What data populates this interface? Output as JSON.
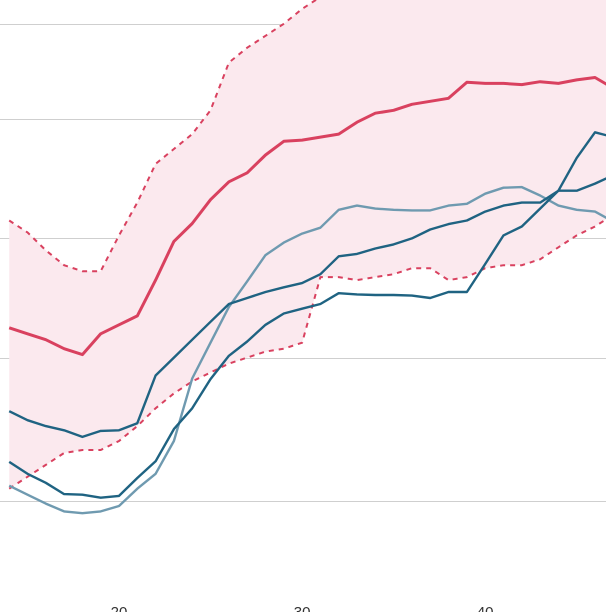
{
  "chart_data": {
    "type": "line",
    "title": "",
    "xlabel": "",
    "ylabel": "",
    "x": [
      14,
      15,
      16,
      17,
      18,
      19,
      20,
      21,
      22,
      23,
      24,
      25,
      26,
      27,
      28,
      29,
      30,
      31,
      32,
      33,
      34,
      35,
      36,
      37,
      38,
      39,
      40,
      41,
      42,
      43,
      44,
      45,
      46,
      47
    ],
    "xlim": [
      13.5,
      46.6
    ],
    "ylim": [
      0,
      1
    ],
    "x_ticks": [
      {
        "value": 20,
        "label": "20"
      },
      {
        "value": 30,
        "label": "30"
      },
      {
        "value": 40,
        "label": "40"
      }
    ],
    "y_gridlines": [
      0.16,
      0.4,
      0.6,
      0.8,
      0.96
    ],
    "band": {
      "upper": [
        0.63,
        0.61,
        0.58,
        0.555,
        0.545,
        0.545,
        0.605,
        0.66,
        0.725,
        0.75,
        0.775,
        0.815,
        0.895,
        0.92,
        0.94,
        0.96,
        0.985,
        1.005,
        1.015,
        1.03,
        1.02,
        1.01,
        1.01,
        1.015,
        1.02,
        1.015,
        1.03,
        1.01,
        1.02,
        1.04,
        1.05,
        1.06,
        1.07,
        1.08
      ],
      "lower": [
        0.18,
        0.2,
        0.22,
        0.24,
        0.245,
        0.245,
        0.26,
        0.285,
        0.315,
        0.34,
        0.36,
        0.375,
        0.39,
        0.4,
        0.41,
        0.415,
        0.425,
        0.535,
        0.535,
        0.53,
        0.535,
        0.54,
        0.55,
        0.55,
        0.53,
        0.535,
        0.55,
        0.555,
        0.555,
        0.565,
        0.585,
        0.605,
        0.62,
        0.64
      ],
      "fill": "#fbe9ee",
      "stroke": "#d9415f"
    },
    "series": [
      {
        "values": [
          0.45,
          0.44,
          0.43,
          0.415,
          0.405,
          0.44,
          0.455,
          0.47,
          0.53,
          0.595,
          0.625,
          0.665,
          0.695,
          0.71,
          0.74,
          0.763,
          0.765,
          0.77,
          0.775,
          0.795,
          0.81,
          0.815,
          0.825,
          0.83,
          0.835,
          0.862,
          0.86,
          0.86,
          0.858,
          0.863,
          0.86,
          0.866,
          0.87,
          0.852
        ],
        "color": "#d9415f",
        "width": 3,
        "dash": ""
      },
      {
        "values": [
          0.31,
          0.295,
          0.285,
          0.278,
          0.267,
          0.277,
          0.278,
          0.29,
          0.37,
          0.4,
          0.43,
          0.46,
          0.49,
          0.5,
          0.51,
          0.518,
          0.525,
          0.54,
          0.57,
          0.574,
          0.583,
          0.59,
          0.6,
          0.615,
          0.624,
          0.63,
          0.645,
          0.655,
          0.66,
          0.66,
          0.68,
          0.68,
          0.692,
          0.706
        ],
        "color": "#1f6382",
        "width": 2.4,
        "dash": ""
      },
      {
        "values": [
          0.225,
          0.205,
          0.19,
          0.171,
          0.17,
          0.165,
          0.168,
          0.198,
          0.226,
          0.28,
          0.315,
          0.364,
          0.403,
          0.427,
          0.455,
          0.474,
          0.482,
          0.49,
          0.508,
          0.506,
          0.505,
          0.505,
          0.504,
          0.5,
          0.51,
          0.51,
          0.557,
          0.605,
          0.62,
          0.65,
          0.68,
          0.735,
          0.778,
          0.77
        ],
        "color": "#1f6382",
        "width": 2.4,
        "dash": ""
      },
      {
        "values": [
          0.185,
          0.17,
          0.155,
          0.142,
          0.139,
          0.142,
          0.151,
          0.18,
          0.205,
          0.26,
          0.365,
          0.425,
          0.485,
          0.528,
          0.572,
          0.593,
          0.608,
          0.618,
          0.648,
          0.655,
          0.65,
          0.648,
          0.647,
          0.647,
          0.655,
          0.658,
          0.675,
          0.685,
          0.686,
          0.672,
          0.655,
          0.648,
          0.645,
          0.628
        ],
        "color": "#6f9ab0",
        "width": 2.4,
        "dash": ""
      }
    ]
  }
}
